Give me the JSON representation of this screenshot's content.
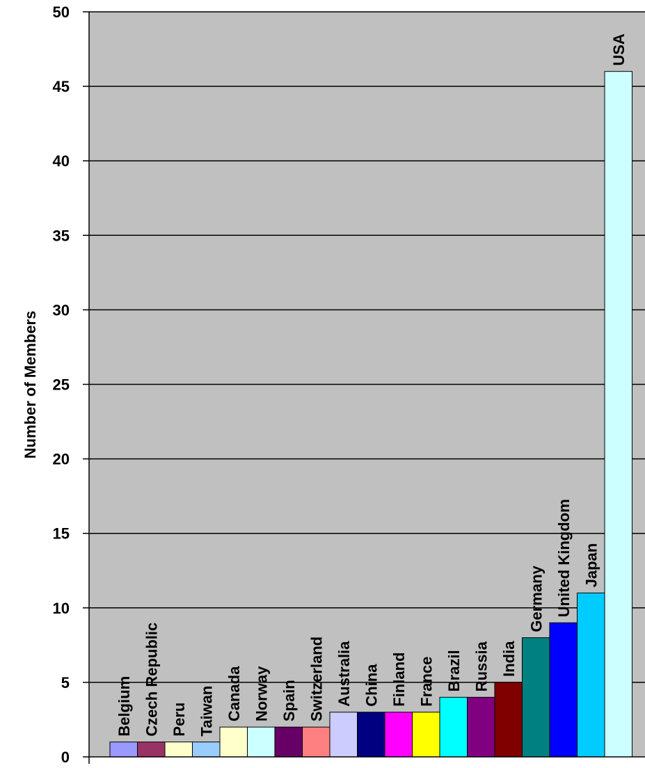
{
  "chart_data": {
    "type": "bar",
    "ylabel": "Number of Members",
    "ylim": [
      0,
      50
    ],
    "ytick_step": 5,
    "grid": true,
    "legend": "none",
    "plot_background": "#c0c0c0",
    "label_placement": "rotated-above-bar",
    "categories": [
      "Belgium",
      "Czech Republic",
      "Peru",
      "Taiwan",
      "Canada",
      "Norway",
      "Spain",
      "Switzerland",
      "Australia",
      "China",
      "Finland",
      "France",
      "Brazil",
      "Russia",
      "India",
      "Germany",
      "United Kingdom",
      "Japan",
      "USA"
    ],
    "values": [
      1,
      1,
      1,
      1,
      2,
      2,
      2,
      2,
      3,
      3,
      3,
      3,
      4,
      4,
      5,
      8,
      9,
      11,
      46
    ],
    "colors": [
      "#9999ff",
      "#993366",
      "#ffffcc",
      "#99ccff",
      "#ffffcc",
      "#ccffff",
      "#660066",
      "#ff8080",
      "#ccccff",
      "#000080",
      "#ff00ff",
      "#ffff00",
      "#00ffff",
      "#800080",
      "#800000",
      "#008080",
      "#0000ff",
      "#00ccff",
      "#ccffff"
    ]
  }
}
